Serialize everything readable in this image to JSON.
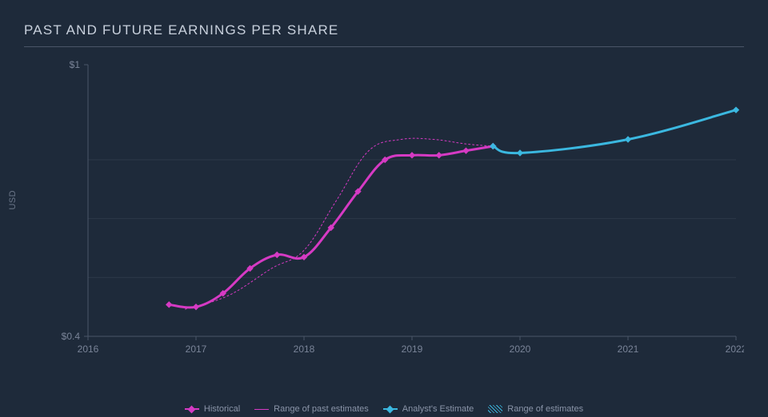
{
  "title": "PAST AND FUTURE EARNINGS PER SHARE",
  "y_axis_label": "USD",
  "chart": {
    "type": "line",
    "background_color": "#1e2a3a",
    "grid_color": "#2c3848",
    "axis_color": "#4a5568",
    "tick_color": "#7a8498",
    "xlim": [
      2016,
      2022
    ],
    "ylim": [
      0.4,
      1.0
    ],
    "x_ticks": [
      2016,
      2017,
      2018,
      2019,
      2020,
      2021,
      2022
    ],
    "y_ticks": [
      {
        "value": 0.4,
        "label": "$0.4"
      },
      {
        "value": 1.0,
        "label": "$1"
      }
    ],
    "grid_y_values": [
      0.53,
      0.66,
      0.79
    ],
    "series": {
      "historical": {
        "label": "Historical",
        "color": "#d63ac4",
        "line_width": 3,
        "marker": "diamond",
        "marker_size": 7,
        "points": [
          {
            "x": 2016.75,
            "y": 0.47
          },
          {
            "x": 2017.0,
            "y": 0.465
          },
          {
            "x": 2017.25,
            "y": 0.495
          },
          {
            "x": 2017.5,
            "y": 0.55
          },
          {
            "x": 2017.75,
            "y": 0.58
          },
          {
            "x": 2018.0,
            "y": 0.575
          },
          {
            "x": 2018.25,
            "y": 0.64
          },
          {
            "x": 2018.5,
            "y": 0.72
          },
          {
            "x": 2018.75,
            "y": 0.79
          },
          {
            "x": 2019.0,
            "y": 0.8
          },
          {
            "x": 2019.25,
            "y": 0.8
          },
          {
            "x": 2019.5,
            "y": 0.81
          },
          {
            "x": 2019.75,
            "y": 0.82
          }
        ]
      },
      "range_past": {
        "label": "Range of past estimates",
        "color": "#d63ac4",
        "line_width": 1,
        "dash": "2,3",
        "points": [
          {
            "x": 2016.9,
            "y": 0.46
          },
          {
            "x": 2017.3,
            "y": 0.49
          },
          {
            "x": 2017.7,
            "y": 0.55
          },
          {
            "x": 2018.0,
            "y": 0.59
          },
          {
            "x": 2018.3,
            "y": 0.7
          },
          {
            "x": 2018.6,
            "y": 0.81
          },
          {
            "x": 2018.9,
            "y": 0.835
          },
          {
            "x": 2019.2,
            "y": 0.835
          },
          {
            "x": 2019.5,
            "y": 0.825
          },
          {
            "x": 2019.75,
            "y": 0.82
          }
        ]
      },
      "estimate": {
        "label": "Analyst's Estimate",
        "color": "#3bb8e0",
        "line_width": 3,
        "marker": "diamond",
        "marker_size": 7,
        "points": [
          {
            "x": 2019.75,
            "y": 0.82
          },
          {
            "x": 2020.0,
            "y": 0.805
          },
          {
            "x": 2021.0,
            "y": 0.835
          },
          {
            "x": 2022.0,
            "y": 0.9
          }
        ]
      },
      "range_estimate": {
        "label": "Range of estimates",
        "color": "#3bb8e0"
      }
    }
  },
  "legend": {
    "items": [
      {
        "key": "historical",
        "label": "Historical",
        "type": "line-marker",
        "color": "#d63ac4"
      },
      {
        "key": "range_past",
        "label": "Range of past estimates",
        "type": "thin-line",
        "color": "#d63ac4"
      },
      {
        "key": "estimate",
        "label": "Analyst's Estimate",
        "type": "line-marker",
        "color": "#3bb8e0"
      },
      {
        "key": "range_estimate",
        "label": "Range of estimates",
        "type": "hatch",
        "color": "#3bb8e0"
      }
    ]
  }
}
